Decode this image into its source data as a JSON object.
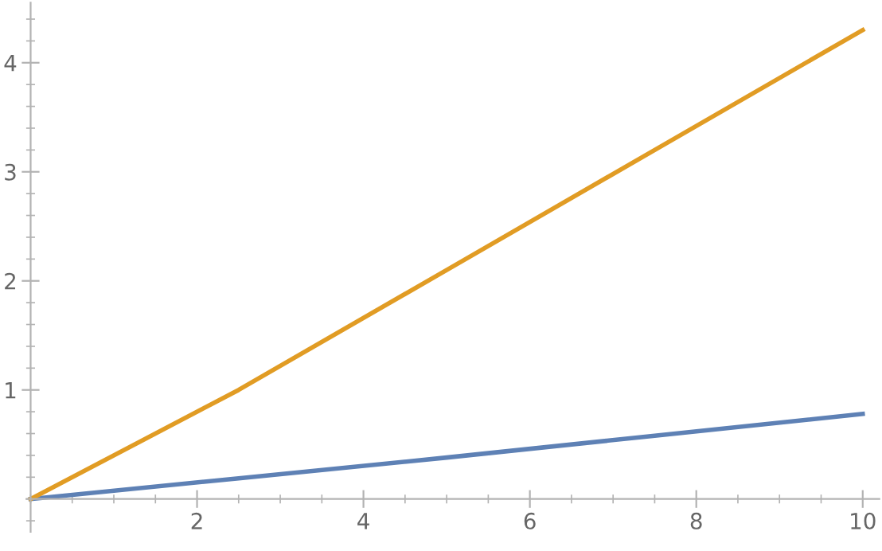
{
  "chart_data": {
    "type": "line",
    "x": [
      0,
      2.5,
      5,
      7.5,
      10
    ],
    "series": [
      {
        "color": "#5e81b5",
        "values": [
          0,
          0.19,
          0.38,
          0.58,
          0.78
        ]
      },
      {
        "color": "#e19c24",
        "values": [
          0,
          1.0,
          2.1,
          3.2,
          4.3
        ]
      }
    ],
    "xlim": [
      -0.05,
      10.2
    ],
    "ylim": [
      -0.3,
      4.55
    ],
    "xticks": [
      2,
      4,
      6,
      8,
      10
    ],
    "yticks": [
      1,
      2,
      3,
      4
    ],
    "grid": false,
    "legend": false,
    "marker": "none",
    "line_style": "solid"
  }
}
